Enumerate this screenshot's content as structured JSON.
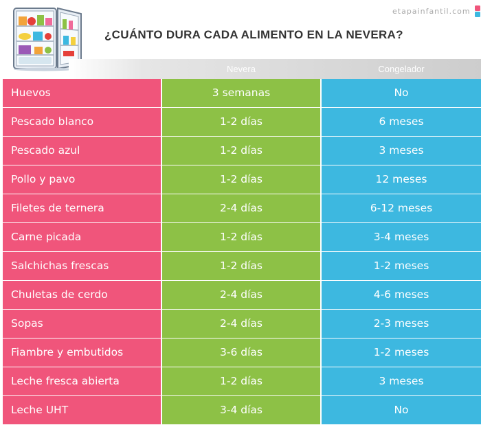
{
  "brand": {
    "text": "etapainfantil.com"
  },
  "title": "¿CUÁNTO DURA CADA ALIMENTO EN LA NEVERA?",
  "columns": {
    "fridge": "Nevera",
    "freezer": "Congelador"
  },
  "colors": {
    "food": "#f0557b",
    "fridge": "#8dc146",
    "freezer": "#3db8e0"
  },
  "rows": [
    {
      "food": "Huevos",
      "fridge": "3 semanas",
      "freezer": "No"
    },
    {
      "food": "Pescado blanco",
      "fridge": "1-2 días",
      "freezer": "6 meses"
    },
    {
      "food": "Pescado azul",
      "fridge": "1-2 días",
      "freezer": "3 meses"
    },
    {
      "food": "Pollo y pavo",
      "fridge": "1-2 días",
      "freezer": "12 meses"
    },
    {
      "food": "Filetes de ternera",
      "fridge": "2-4 días",
      "freezer": "6-12 meses"
    },
    {
      "food": "Carne picada",
      "fridge": "1-2 días",
      "freezer": "3-4 meses"
    },
    {
      "food": "Salchichas frescas",
      "fridge": "1-2 días",
      "freezer": "1-2 meses"
    },
    {
      "food": "Chuletas de cerdo",
      "fridge": "2-4 días",
      "freezer": "4-6 meses"
    },
    {
      "food": "Sopas",
      "fridge": "2-4 días",
      "freezer": "2-3 meses"
    },
    {
      "food": "Fiambre y embutidos",
      "fridge": "3-6 días",
      "freezer": "1-2 meses"
    },
    {
      "food": "Leche fresca abierta",
      "fridge": "1-2 días",
      "freezer": "3 meses"
    },
    {
      "food": "Leche UHT",
      "fridge": "3-4 días",
      "freezer": "No"
    }
  ]
}
